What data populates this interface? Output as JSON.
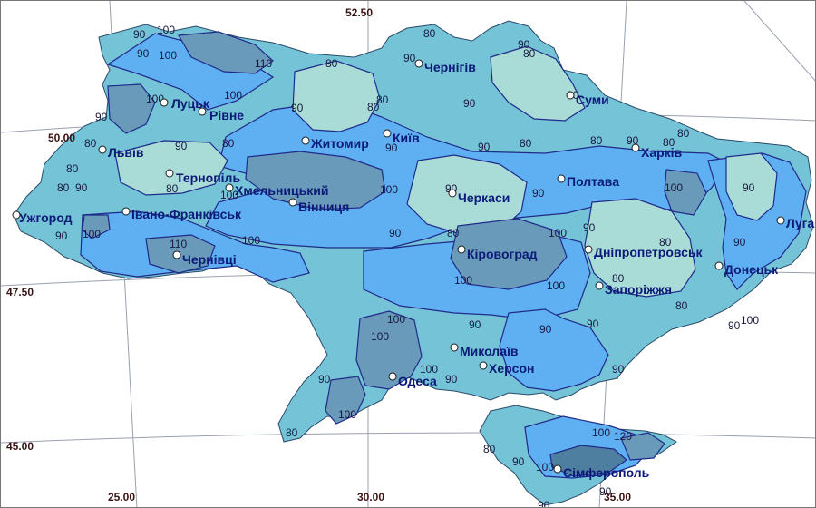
{
  "coordinates": {
    "lat_top": "52.50",
    "lat_50": "50.00",
    "lat_4750": "47.50",
    "lat_45": "45.00",
    "lon_25": "25.00",
    "lon_30": "30.00",
    "lon_35": "35.00"
  },
  "cities": [
    {
      "name": "Ужгород"
    },
    {
      "name": "Львів"
    },
    {
      "name": "Луцьк"
    },
    {
      "name": "Рівне"
    },
    {
      "name": "Тернопіль"
    },
    {
      "name": "Івано-Франківськ"
    },
    {
      "name": "Чернівці"
    },
    {
      "name": "Хмельницький"
    },
    {
      "name": "Вінниця"
    },
    {
      "name": "Житомир"
    },
    {
      "name": "Київ"
    },
    {
      "name": "Чернігів"
    },
    {
      "name": "Суми"
    },
    {
      "name": "Харків"
    },
    {
      "name": "Полтава"
    },
    {
      "name": "Черкаси"
    },
    {
      "name": "Кіровоград"
    },
    {
      "name": "Дніпропетровськ"
    },
    {
      "name": "Донецьк"
    },
    {
      "name": "Луга"
    },
    {
      "name": "Запоріжжя"
    },
    {
      "name": "Миколаїв"
    },
    {
      "name": "Херсон"
    },
    {
      "name": "Одеса"
    },
    {
      "name": "Сімферополь"
    }
  ],
  "iso_values": {
    "v80": "80",
    "v90": "90",
    "v100": "100",
    "v110": "110",
    "v120": "120"
  },
  "colors": {
    "level_80": "#a9dcd6",
    "level_90": "#75c3d6",
    "level_100": "#5fb0f2",
    "level_110": "#6a9aba",
    "level_120": "#4e7fa0",
    "isoline": "#1f2a8a",
    "graticule": "#9aa0b0"
  }
}
